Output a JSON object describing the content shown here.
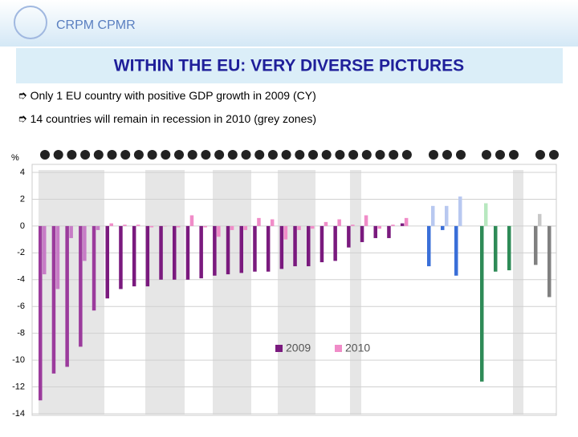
{
  "header": {
    "logo": "CRPM CPMR",
    "title": "WITHIN THE EU: VERY DIVERSE PICTURES",
    "bullets": [
      "Only 1 EU country with positive GDP growth in 2009 (CY)",
      "14 countries will remain in recession in 2010 (grey zones)"
    ]
  },
  "chart_data": {
    "type": "bar",
    "ylabel": "%",
    "categories": [
      null,
      null,
      null,
      null,
      null,
      null,
      null,
      null,
      null,
      null,
      null,
      null,
      null,
      null,
      null,
      null,
      null,
      null,
      null,
      null,
      null,
      null,
      null,
      null,
      null,
      null,
      null,
      null,
      null,
      null,
      null,
      null,
      null,
      null,
      null,
      null
    ],
    "series": [
      {
        "name": "2009",
        "color": "#7a1a7e",
        "values": [
          -13.0,
          -11.0,
          -10.5,
          -9.0,
          -6.3,
          -5.4,
          -4.7,
          -4.5,
          -4.5,
          -4.0,
          -4.0,
          -4.0,
          -3.9,
          -3.7,
          -3.6,
          -3.5,
          -3.4,
          -3.4,
          -3.2,
          -3.0,
          -3.0,
          -2.7,
          -2.6,
          -1.6,
          -1.2,
          -0.9,
          -0.9,
          0.2,
          -3.0,
          -0.3,
          -3.7,
          -11.6,
          -3.4,
          -3.3,
          -2.9,
          -5.3
        ],
        "colors": [
          "#9b3b9c",
          "#9b3b9c",
          "#9b3b9c",
          "#9b3b9c",
          "#9b3b9c",
          "#7a1a7e",
          "#7a1a7e",
          "#7a1a7e",
          "#7a1a7e",
          "#7a1a7e",
          "#7a1a7e",
          "#7a1a7e",
          "#7a1a7e",
          "#7a1a7e",
          "#7a1a7e",
          "#7a1a7e",
          "#7a1a7e",
          "#7a1a7e",
          "#7a1a7e",
          "#7a1a7e",
          "#7a1a7e",
          "#7a1a7e",
          "#7a1a7e",
          "#7a1a7e",
          "#7a1a7e",
          "#7a1a7e",
          "#7a1a7e",
          "#7a1a7e",
          "#3a6fd8",
          "#3a6fd8",
          "#3a6fd8",
          "#2e8b57",
          "#2e8b57",
          "#2e8b57",
          "#808080",
          "#808080"
        ]
      },
      {
        "name": "2010",
        "color": "#f08cc8",
        "values": [
          -3.6,
          -4.7,
          -0.9,
          -2.6,
          -0.3,
          0.2,
          0.1,
          0.1,
          -0.1,
          0,
          -0.1,
          0.8,
          -0.1,
          -0.8,
          -0.3,
          -0.3,
          0.6,
          0.5,
          -1.0,
          -0.3,
          -0.2,
          0.3,
          0.5,
          0.1,
          0.8,
          -0.2,
          0.1,
          0.6,
          1.5,
          1.5,
          2.2,
          1.7,
          0,
          0,
          0.9,
          0
        ],
        "colors": [
          "#c77cc6",
          "#c77cc6",
          "#c77cc6",
          "#c77cc6",
          "#c77cc6",
          "#f08cc8",
          "#f08cc8",
          "#f08cc8",
          "#f08cc8",
          "#f08cc8",
          "#f08cc8",
          "#f08cc8",
          "#f08cc8",
          "#f08cc8",
          "#f08cc8",
          "#f08cc8",
          "#f08cc8",
          "#f08cc8",
          "#f08cc8",
          "#f08cc8",
          "#f08cc8",
          "#f08cc8",
          "#f08cc8",
          "#f08cc8",
          "#f08cc8",
          "#f08cc8",
          "#f08cc8",
          "#f08cc8",
          "#b8c8f0",
          "#b8c8f0",
          "#b8c8f0",
          "#b8e8c0",
          "#b8e8c0",
          "#b8e8c0",
          "#c8c8c8",
          "#c8c8c8"
        ]
      }
    ],
    "ylim": [
      -14,
      4
    ],
    "yticks": [
      -14,
      -12,
      -10,
      -8,
      -6,
      -4,
      -2,
      0,
      2,
      4
    ],
    "grid": true
  }
}
